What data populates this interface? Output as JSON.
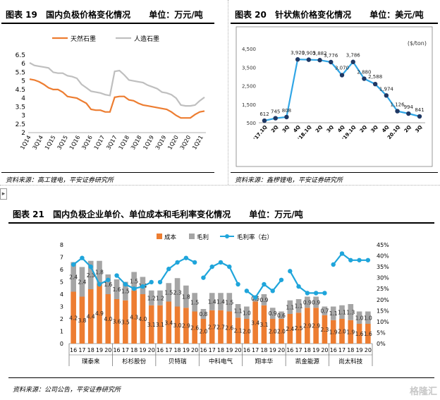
{
  "panel19": {
    "label": "图表 19",
    "title": "国内负极价格变化情况",
    "unit": "单位：万元/吨",
    "source": "资料来源：高工锂电，平安证券研究所"
  },
  "panel20": {
    "label": "图表 20",
    "title": "针状焦价格变化情况",
    "unit": "单位：美元/吨",
    "source": "资料来源：鑫椤锂电，平安证券研究所"
  },
  "panel21": {
    "label": "图表 21",
    "title": "国内负极企业单价、单位成本和毛利率变化情况",
    "unit": "单位：万元/吨",
    "source": "资料来源：公司公告，平安证券研究所"
  },
  "colors": {
    "orange": "#ED7D31",
    "gray": "#A5A5A5",
    "blue": "#0070C0",
    "cyan": "#1FA5DB",
    "navy": "#1F3864"
  },
  "watermark": "格隆汇",
  "chart_data": [
    {
      "type": "line",
      "title": "",
      "x_tick_labels": [
        "1Q14",
        "3Q14",
        "1Q15",
        "3Q15",
        "1Q16",
        "3Q16",
        "1Q17",
        "3Q17",
        "1Q18",
        "3Q18",
        "1Q19",
        "3Q19",
        "1Q20",
        "3Q20",
        "1Q21"
      ],
      "y_ticks": [
        "2",
        "2.5",
        "3",
        "3.5",
        "4",
        "4.5",
        "5",
        "5.5",
        "6",
        "6.5"
      ],
      "ylim": [
        2,
        6.5
      ],
      "legend": "top",
      "series": [
        {
          "name": "天然石墨",
          "color": "#ED7D31",
          "values": [
            5.1,
            5.05,
            4.95,
            4.8,
            4.6,
            4.5,
            4.5,
            4.35,
            4.1,
            4.05,
            4.0,
            3.85,
            3.7,
            3.35,
            3.3,
            3.3,
            3.2,
            3.2,
            4.05,
            4.1,
            4.1,
            3.9,
            3.85,
            3.7,
            3.6,
            3.55,
            3.5,
            3.45,
            3.4,
            3.35,
            3.2,
            3.0,
            2.85,
            2.85,
            2.85,
            3.05,
            3.2,
            3.25
          ]
        },
        {
          "name": "人造石墨",
          "color": "#BFBFBF",
          "values": [
            6.05,
            5.9,
            5.85,
            5.8,
            5.75,
            5.5,
            5.45,
            5.45,
            5.3,
            5.25,
            5.15,
            4.8,
            4.6,
            4.4,
            4.35,
            4.3,
            4.2,
            4.15,
            5.55,
            5.6,
            5.35,
            5.05,
            5.0,
            4.95,
            4.9,
            4.75,
            4.65,
            4.55,
            4.35,
            4.3,
            4.2,
            4.0,
            3.6,
            3.55,
            3.55,
            3.6,
            3.85,
            4.05
          ]
        }
      ]
    },
    {
      "type": "line",
      "title": "",
      "unit_label": "($/ton)",
      "categories": [
        "'17.1Q",
        "2Q",
        "3Q",
        "4Q",
        "'18.1Q",
        "2Q",
        "3Q",
        "4Q",
        "'19.1Q",
        "2Q",
        "3Q",
        "4Q",
        "20.1Q",
        "2Q",
        "3Q"
      ],
      "values": [
        612,
        745,
        808,
        3920,
        3905,
        3882,
        3776,
        3070,
        3786,
        2880,
        2588,
        1974,
        1126,
        994,
        841
      ],
      "data_labels": [
        "612",
        "745",
        "808",
        "3,920",
        "3,905",
        "3,882",
        "3,776",
        "3,070",
        "3,786",
        "2,880",
        "2,588",
        "1,974",
        "1,126",
        "994",
        "841"
      ],
      "y_ticks": [
        "500",
        "1,500",
        "2,500",
        "3,500",
        "4,500"
      ],
      "ylim": [
        500,
        4500
      ]
    },
    {
      "type": "bar",
      "title": "",
      "categories": [
        "16",
        "17",
        "18",
        "19",
        "20",
        "16",
        "17",
        "18",
        "19",
        "20",
        "16",
        "17",
        "18",
        "19",
        "20",
        "16",
        "17",
        "18",
        "19",
        "20",
        "16",
        "17",
        "18",
        "19",
        "20",
        "16",
        "17",
        "18",
        "19",
        "20",
        "16",
        "17",
        "18",
        "19",
        "20"
      ],
      "groups": [
        "璞泰来",
        "杉杉股份",
        "贝特瑞",
        "中科电气",
        "翔丰华",
        "凯金能源",
        "尚太科技"
      ],
      "legend": "top",
      "series": [
        {
          "name": "成本",
          "type": "stacked-bar",
          "color": "#ED7D31",
          "values": [
            4.2,
            3.8,
            4.4,
            4.9,
            4.0,
            3.6,
            3.5,
            4.3,
            4.0,
            3.1,
            3.1,
            3.4,
            3.0,
            2.9,
            2.6,
            2.0,
            2.7,
            2.7,
            2.6,
            2.1,
            2.0,
            3.4,
            3.1,
            2.0,
            2.0,
            2.4,
            2.5,
            2.9,
            2.9,
            2.3,
            1.9,
            2.0,
            1.9,
            1.6,
            1.6
          ],
          "labels": [
            "4.2",
            "3.8",
            "4.4",
            "4.9",
            "4.0",
            "3.6",
            "3.5",
            "4.3",
            "4.0",
            "3.1",
            "3.1",
            "3.4",
            "3.0",
            "2.9",
            "2.6",
            "2.0",
            "2.7",
            "2.7",
            "2.6",
            "2.1",
            "2.0",
            "3.4",
            "3.1",
            "2.0",
            "2.0",
            "2.4",
            "2.5",
            "2.9",
            "2.9",
            "2.3",
            "1.9",
            "2.0",
            "1.9",
            "1.6",
            "1.6"
          ]
        },
        {
          "name": "毛利",
          "type": "stacked-bar",
          "color": "#A5A5A5",
          "values": [
            2.4,
            2.4,
            2.3,
            1.8,
            1.6,
            1.6,
            1.5,
            1.5,
            1.4,
            1.2,
            1.2,
            1.5,
            2.3,
            1.8,
            1.5,
            0.8,
            1.4,
            1.4,
            1.5,
            1.1,
            1.0,
            0.5,
            0.9,
            0.9,
            0.6,
            1.1,
            1.1,
            0.9,
            0.9,
            0.7,
            1.1,
            1.1,
            1.3,
            1.0,
            1.0
          ],
          "labels": [
            "2.4",
            "2.4",
            "2.3",
            "1.8",
            "1.6",
            "1.6",
            "1.5",
            "1.5",
            "1.4",
            "1.2",
            "1.2",
            "1.5",
            "2.3",
            "1.8",
            "1.5",
            "0.8",
            "1.4",
            "1.4",
            "1.5",
            "1.1",
            "1.0",
            "0.5",
            "0.9",
            "0.9",
            "0.6",
            "1.1",
            "1.1",
            "0.9",
            "0.9",
            "0.7",
            "1.1",
            "1.1",
            "1.3",
            "1.0",
            "1.0"
          ]
        },
        {
          "name": "毛利率（右）",
          "type": "line",
          "color": "#1FA5DB",
          "values": [
            36,
            39,
            35,
            27,
            29,
            31,
            27,
            25,
            26,
            28,
            28,
            34,
            37,
            39,
            37,
            30,
            35,
            37,
            35,
            27,
            24,
            21,
            27,
            24,
            29,
            33,
            26,
            23,
            23,
            23,
            36,
            41,
            38,
            38,
            38
          ]
        }
      ],
      "y_ticks": [
        "0",
        "1",
        "2",
        "3",
        "4",
        "5",
        "6",
        "7",
        "8"
      ],
      "ylim": [
        0,
        8
      ],
      "y2_ticks": [
        "0%",
        "5%",
        "10%",
        "15%",
        "20%",
        "25%",
        "30%",
        "35%",
        "40%",
        "45%"
      ],
      "y2lim": [
        0,
        45
      ]
    }
  ]
}
